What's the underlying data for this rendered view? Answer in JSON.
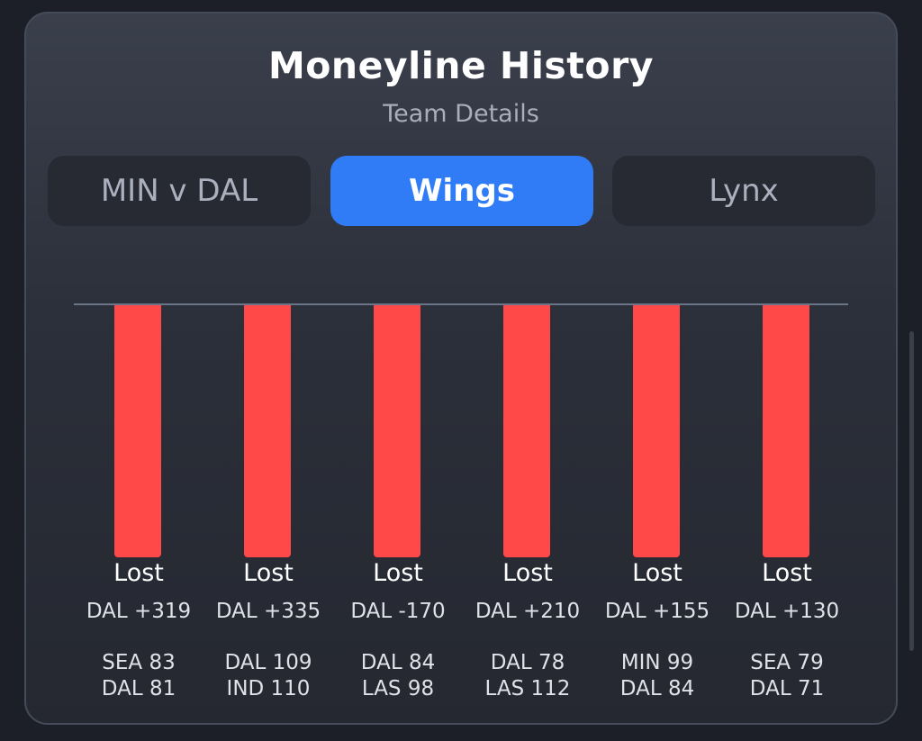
{
  "card": {
    "title": "Moneyline History",
    "subtitle": "Team Details"
  },
  "tabs": [
    {
      "label": "MIN v DAL",
      "active": false
    },
    {
      "label": "Wings",
      "active": true
    },
    {
      "label": "Lynx",
      "active": false
    }
  ],
  "colors": {
    "background": "#1c1f27",
    "accent": "#2f7cf6",
    "loss_bar": "#ff4848"
  },
  "chart_data": {
    "type": "bar",
    "categories": [
      "DAL +319",
      "DAL +335",
      "DAL -170",
      "DAL +210",
      "DAL +155",
      "DAL +130"
    ],
    "games": [
      {
        "result": "Lost",
        "line": "DAL +319",
        "score_1": "SEA 83",
        "score_2": "DAL 81"
      },
      {
        "result": "Lost",
        "line": "DAL +335",
        "score_1": "DAL 109",
        "score_2": "IND 110"
      },
      {
        "result": "Lost",
        "line": "DAL -170",
        "score_1": "DAL 84",
        "score_2": "LAS 98"
      },
      {
        "result": "Lost",
        "line": "DAL +210",
        "score_1": "DAL 78",
        "score_2": "LAS 112"
      },
      {
        "result": "Lost",
        "line": "DAL +155",
        "score_1": "MIN 99",
        "score_2": "DAL 84"
      },
      {
        "result": "Lost",
        "line": "DAL +130",
        "score_1": "SEA 79",
        "score_2": "DAL 71"
      }
    ]
  }
}
